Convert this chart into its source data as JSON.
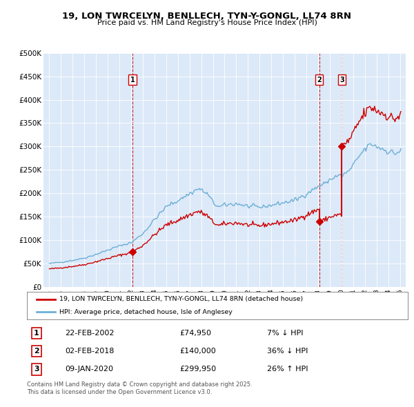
{
  "title": "19, LON TWRCELYN, BENLLECH, TYN-Y-GONGL, LL74 8RN",
  "subtitle": "Price paid vs. HM Land Registry's House Price Index (HPI)",
  "background_color": "#dce9f8",
  "ylim": [
    0,
    500000
  ],
  "yticks": [
    0,
    50000,
    100000,
    150000,
    200000,
    250000,
    300000,
    350000,
    400000,
    450000,
    500000
  ],
  "ytick_labels": [
    "£0",
    "£50K",
    "£100K",
    "£150K",
    "£200K",
    "£250K",
    "£300K",
    "£350K",
    "£400K",
    "£450K",
    "£500K"
  ],
  "xlim_start": 1994.5,
  "xlim_end": 2025.5,
  "hpi_color": "#6baed6",
  "price_color": "#cc0000",
  "transaction_dates": [
    2002.12,
    2018.09,
    2020.03
  ],
  "transaction_labels": [
    "1",
    "2",
    "3"
  ],
  "transaction_prices": [
    74950,
    140000,
    299950
  ],
  "legend_property": "19, LON TWRCELYN, BENLLECH, TYN-Y-GONGL, LL74 8RN (detached house)",
  "legend_hpi": "HPI: Average price, detached house, Isle of Anglesey",
  "table_entries": [
    {
      "num": "1",
      "date": "22-FEB-2002",
      "price": "£74,950",
      "hpi": "7% ↓ HPI"
    },
    {
      "num": "2",
      "date": "02-FEB-2018",
      "price": "£140,000",
      "hpi": "36% ↓ HPI"
    },
    {
      "num": "3",
      "date": "09-JAN-2020",
      "price": "£299,950",
      "hpi": "26% ↑ HPI"
    }
  ],
  "footer": "Contains HM Land Registry data © Crown copyright and database right 2025.\nThis data is licensed under the Open Government Licence v3.0.",
  "noise_seed": 42
}
